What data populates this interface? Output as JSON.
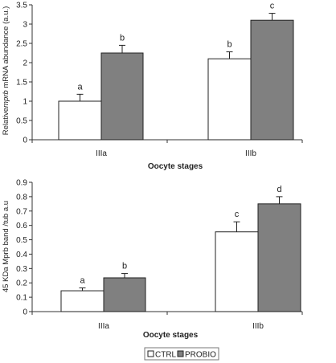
{
  "colors": {
    "ctrl": "#ffffff",
    "probio": "#808080",
    "axis": "#333333",
    "bar_stroke": "#222222"
  },
  "legend": {
    "ctrl": "CTRL",
    "probio": "PROBIO",
    "placement": "bottom-center"
  },
  "chart_data": [
    {
      "type": "bar",
      "categories": [
        "IIIa",
        "IIIb"
      ],
      "series": [
        {
          "name": "CTRL",
          "values": [
            1.0,
            2.1
          ],
          "errors": [
            0.18,
            0.18
          ],
          "labels": [
            "a",
            "b"
          ]
        },
        {
          "name": "PROBIO",
          "values": [
            2.25,
            3.1
          ],
          "errors": [
            0.2,
            0.18
          ],
          "labels": [
            "b",
            "c"
          ]
        }
      ],
      "ylabel_pre": "Relative",
      "ylabel_em": "mprb",
      "ylabel_post": " mRNA abundance (a.u.)",
      "xlabel": "Oocyte stages",
      "ylim": [
        0,
        3.5
      ],
      "yticks": [
        "0",
        "0.5",
        "1",
        "1.5",
        "2",
        "2.5",
        "3",
        "3.5"
      ],
      "grid": false
    },
    {
      "type": "bar",
      "categories": [
        "IIIa",
        "IIIb"
      ],
      "series": [
        {
          "name": "CTRL",
          "values": [
            0.145,
            0.555
          ],
          "errors": [
            0.02,
            0.07
          ],
          "labels": [
            "a",
            "c"
          ]
        },
        {
          "name": "PROBIO",
          "values": [
            0.235,
            0.75
          ],
          "errors": [
            0.03,
            0.05
          ],
          "labels": [
            "b",
            "d"
          ]
        }
      ],
      "ylabel": "45 KDa Mprb band /tub a.u",
      "xlabel": "Oocyte stages",
      "ylim": [
        0,
        0.9
      ],
      "yticks": [
        "0",
        "0.1",
        "0.2",
        "0.3",
        "0.4",
        "0.5",
        "0.6",
        "0.7",
        "0.8",
        "0.9"
      ],
      "grid": false
    }
  ]
}
